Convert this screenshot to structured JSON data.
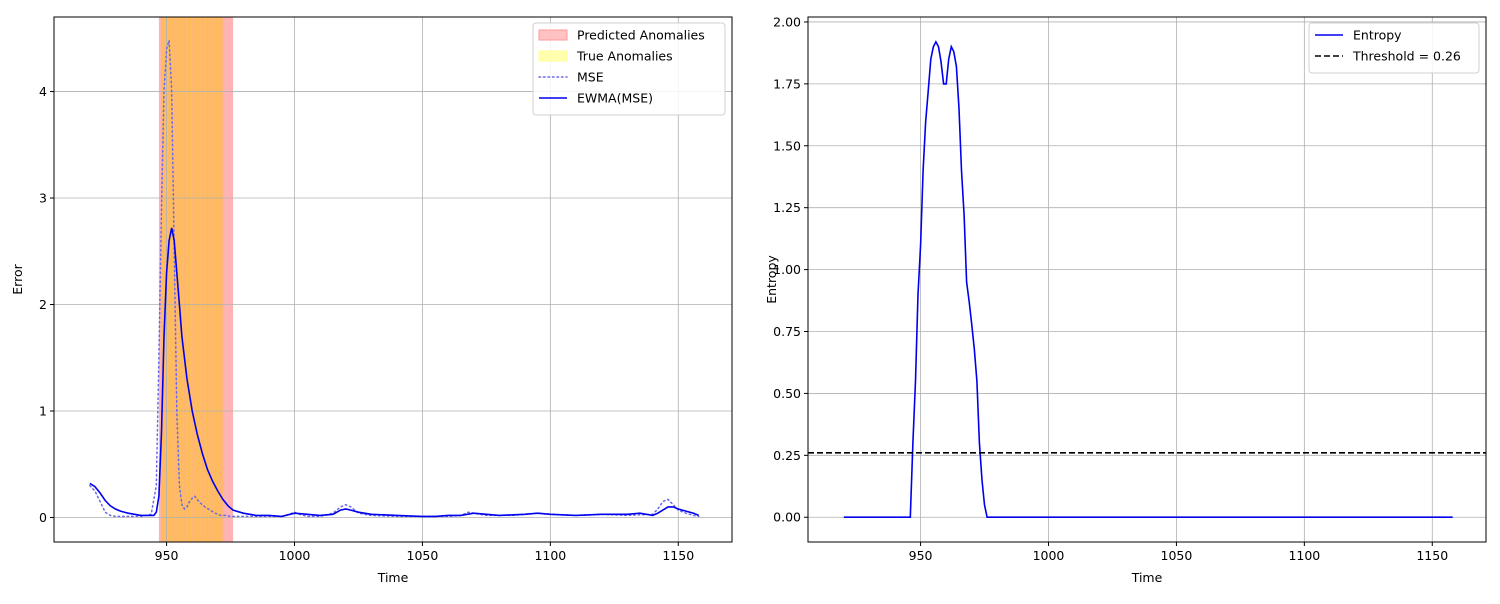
{
  "chart_data": [
    {
      "type": "line",
      "xlabel": "Time",
      "ylabel": "Error",
      "xlim": [
        906,
        1171
      ],
      "ylim": [
        -0.23,
        4.7
      ],
      "xticks": [
        950,
        1000,
        1050,
        1100,
        1150
      ],
      "yticks": [
        0,
        1,
        2,
        3,
        4
      ],
      "grid": true,
      "legend_position": "top-right",
      "legend": [
        "Predicted Anomalies",
        "True Anomalies",
        "MSE",
        "EWMA(MSE)"
      ],
      "colors": {
        "predicted": "#ff9999",
        "true": "#ffff99",
        "mse": "#6a6ae6",
        "ewma": "#0000ee"
      },
      "predicted_anomaly_range": [
        947,
        976
      ],
      "true_anomaly_range": [
        948,
        972
      ],
      "series": [
        {
          "name": "MSE",
          "style": "dotted",
          "x": [
            920,
            922,
            924,
            926,
            928,
            930,
            935,
            940,
            944,
            946,
            947,
            948,
            949,
            950,
            951,
            952,
            953,
            954,
            955,
            956,
            957,
            958,
            959,
            960,
            961,
            962,
            963,
            965,
            967,
            969,
            971,
            973,
            975,
            978,
            982,
            986,
            990,
            995,
            998,
            1000,
            1002,
            1005,
            1010,
            1015,
            1018,
            1020,
            1022,
            1025,
            1030,
            1040,
            1050,
            1060,
            1065,
            1068,
            1070,
            1075,
            1080,
            1085,
            1090,
            1095,
            1100,
            1110,
            1120,
            1130,
            1140,
            1142,
            1144,
            1146,
            1148,
            1150,
            1153,
            1156,
            1158
          ],
          "y": [
            0.3,
            0.25,
            0.15,
            0.05,
            0.02,
            0.01,
            0.01,
            0.01,
            0.03,
            0.3,
            1.5,
            2.9,
            4.0,
            4.4,
            4.48,
            4.0,
            2.5,
            1.0,
            0.3,
            0.12,
            0.08,
            0.1,
            0.15,
            0.18,
            0.2,
            0.17,
            0.14,
            0.1,
            0.07,
            0.04,
            0.02,
            0.02,
            0.01,
            0.01,
            0.01,
            0.01,
            0.01,
            0.01,
            0.03,
            0.05,
            0.03,
            0.01,
            0.01,
            0.04,
            0.1,
            0.12,
            0.1,
            0.04,
            0.02,
            0.01,
            0.01,
            0.01,
            0.02,
            0.05,
            0.04,
            0.02,
            0.02,
            0.02,
            0.03,
            0.04,
            0.03,
            0.02,
            0.03,
            0.02,
            0.03,
            0.08,
            0.15,
            0.17,
            0.12,
            0.07,
            0.04,
            0.02,
            0.01
          ]
        },
        {
          "name": "EWMA(MSE)",
          "style": "solid",
          "x": [
            920,
            922,
            924,
            926,
            928,
            930,
            932,
            935,
            940,
            945,
            946,
            947,
            948,
            949,
            950,
            951,
            952,
            953,
            954,
            955,
            956,
            958,
            960,
            962,
            964,
            966,
            968,
            970,
            972,
            974,
            976,
            980,
            985,
            990,
            995,
            1000,
            1005,
            1010,
            1015,
            1018,
            1020,
            1022,
            1025,
            1030,
            1040,
            1050,
            1055,
            1060,
            1065,
            1070,
            1075,
            1080,
            1090,
            1095,
            1100,
            1110,
            1120,
            1130,
            1135,
            1140,
            1142,
            1144,
            1146,
            1148,
            1150,
            1153,
            1156,
            1158
          ],
          "y": [
            0.32,
            0.29,
            0.23,
            0.16,
            0.11,
            0.08,
            0.06,
            0.04,
            0.02,
            0.02,
            0.05,
            0.2,
            0.8,
            1.7,
            2.3,
            2.6,
            2.72,
            2.6,
            2.3,
            2.0,
            1.7,
            1.3,
            1.0,
            0.78,
            0.6,
            0.45,
            0.34,
            0.25,
            0.17,
            0.11,
            0.07,
            0.04,
            0.02,
            0.02,
            0.01,
            0.04,
            0.03,
            0.02,
            0.03,
            0.07,
            0.08,
            0.07,
            0.05,
            0.03,
            0.02,
            0.01,
            0.01,
            0.02,
            0.02,
            0.04,
            0.03,
            0.02,
            0.03,
            0.04,
            0.03,
            0.02,
            0.03,
            0.03,
            0.04,
            0.02,
            0.04,
            0.07,
            0.1,
            0.1,
            0.08,
            0.06,
            0.04,
            0.02
          ]
        }
      ]
    },
    {
      "type": "line",
      "xlabel": "Time",
      "ylabel": "Entropy",
      "xlim": [
        906,
        1171
      ],
      "ylim": [
        -0.1,
        2.02
      ],
      "xticks": [
        950,
        1000,
        1050,
        1100,
        1150
      ],
      "yticks": [
        0.0,
        0.25,
        0.5,
        0.75,
        1.0,
        1.25,
        1.5,
        1.75,
        2.0
      ],
      "yticklabels": [
        "0.00",
        "0.25",
        "0.50",
        "0.75",
        "1.00",
        "1.25",
        "1.50",
        "1.75",
        "2.00"
      ],
      "grid": true,
      "legend_position": "top-right",
      "legend": [
        "Entropy",
        "Threshold = 0.26"
      ],
      "colors": {
        "entropy": "#0000ee",
        "threshold": "#000000"
      },
      "threshold": 0.26,
      "series": [
        {
          "name": "Entropy",
          "style": "solid",
          "x": [
            920,
            930,
            940,
            946,
            947,
            948,
            949,
            950,
            951,
            952,
            953,
            954,
            955,
            956,
            957,
            958,
            959,
            960,
            961,
            962,
            963,
            964,
            965,
            966,
            967,
            968,
            969,
            970,
            971,
            972,
            973,
            974,
            975,
            976,
            977,
            980,
            1000,
            1050,
            1100,
            1158
          ],
          "y": [
            0,
            0,
            0,
            0,
            0.3,
            0.55,
            0.9,
            1.1,
            1.4,
            1.6,
            1.72,
            1.85,
            1.9,
            1.92,
            1.9,
            1.84,
            1.75,
            1.75,
            1.85,
            1.9,
            1.88,
            1.82,
            1.65,
            1.4,
            1.22,
            0.95,
            0.87,
            0.78,
            0.68,
            0.55,
            0.3,
            0.15,
            0.05,
            0,
            0,
            0,
            0,
            0,
            0,
            0
          ]
        },
        {
          "name": "Threshold = 0.26",
          "style": "dashed",
          "x": [
            906,
            1171
          ],
          "y": [
            0.26,
            0.26
          ]
        }
      ]
    }
  ]
}
